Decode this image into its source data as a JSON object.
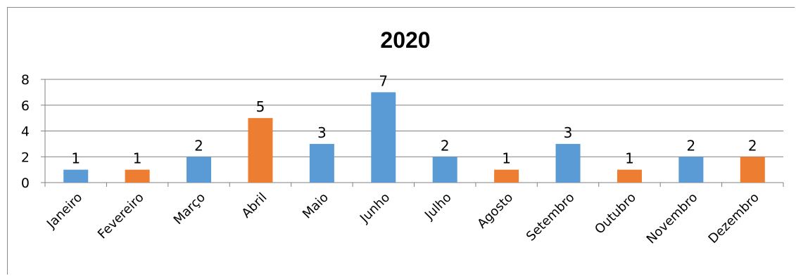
{
  "chart_data": {
    "type": "bar",
    "title": "2020",
    "xlabel": "",
    "ylabel": "",
    "categories": [
      "Janeiro",
      "Fevereiro",
      "Março",
      "Abril",
      "Maio",
      "Junho",
      "Julho",
      "Agosto",
      "Setembro",
      "Outubro",
      "Novembro",
      "Dezembro"
    ],
    "values": [
      1,
      1,
      2,
      5,
      3,
      7,
      2,
      1,
      3,
      1,
      2,
      2
    ],
    "bar_colors": [
      "#5b9bd5",
      "#ed7d31",
      "#5b9bd5",
      "#ed7d31",
      "#5b9bd5",
      "#5b9bd5",
      "#5b9bd5",
      "#ed7d31",
      "#5b9bd5",
      "#ed7d31",
      "#5b9bd5",
      "#ed7d31"
    ],
    "data_labels": [
      "1",
      "1",
      "2",
      "5",
      "3",
      "7",
      "2",
      "1",
      "3",
      "1",
      "2",
      "2"
    ],
    "ylim": [
      0,
      8
    ],
    "yticks": [
      "0",
      "2",
      "4",
      "6",
      "8"
    ],
    "grid": true,
    "legend": "none"
  },
  "colors": {
    "blue": "#5b9bd5",
    "orange": "#ed7d31",
    "gridline": "#808080",
    "frame": "#8c8c8c"
  }
}
